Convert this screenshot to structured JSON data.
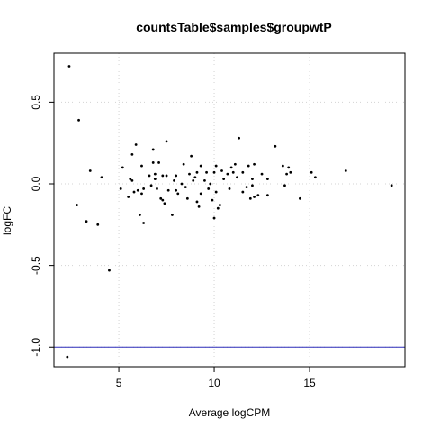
{
  "chart_data": {
    "type": "scatter",
    "title": "countsTable$samples$groupwtP",
    "xlabel": "Average logCPM",
    "ylabel": "logFC",
    "xlim": [
      1.6,
      20.0
    ],
    "ylim": [
      -1.12,
      0.8
    ],
    "grid": true,
    "x_ticks": [
      5,
      10,
      15
    ],
    "y_ticks": [
      -1.0,
      -0.5,
      0.0,
      0.5
    ],
    "x_tick_labels": [
      "5",
      "10",
      "15"
    ],
    "y_tick_labels": [
      "-1.0",
      "-0.5",
      "0.0",
      "0.5"
    ],
    "hline": {
      "y": -1.0,
      "color": "#2b2bb8"
    },
    "points": [
      {
        "x": 2.4,
        "y": 0.72
      },
      {
        "x": 2.9,
        "y": 0.39
      },
      {
        "x": 2.8,
        "y": -0.13
      },
      {
        "x": 2.3,
        "y": -1.06
      },
      {
        "x": 3.3,
        "y": -0.23
      },
      {
        "x": 3.5,
        "y": 0.08
      },
      {
        "x": 3.9,
        "y": -0.25
      },
      {
        "x": 4.1,
        "y": 0.04
      },
      {
        "x": 4.5,
        "y": -0.53
      },
      {
        "x": 5.1,
        "y": -0.03
      },
      {
        "x": 5.2,
        "y": 0.1
      },
      {
        "x": 5.5,
        "y": -0.08
      },
      {
        "x": 5.6,
        "y": 0.03
      },
      {
        "x": 5.7,
        "y": 0.02
      },
      {
        "x": 5.7,
        "y": 0.18
      },
      {
        "x": 5.8,
        "y": -0.05
      },
      {
        "x": 5.9,
        "y": 0.24
      },
      {
        "x": 6.0,
        "y": -0.04
      },
      {
        "x": 6.1,
        "y": -0.19
      },
      {
        "x": 6.2,
        "y": -0.06
      },
      {
        "x": 6.2,
        "y": 0.11
      },
      {
        "x": 6.3,
        "y": -0.03
      },
      {
        "x": 6.3,
        "y": -0.24
      },
      {
        "x": 6.6,
        "y": 0.05
      },
      {
        "x": 6.7,
        "y": -0.01
      },
      {
        "x": 6.8,
        "y": 0.21
      },
      {
        "x": 6.8,
        "y": 0.13
      },
      {
        "x": 6.9,
        "y": 0.06
      },
      {
        "x": 6.9,
        "y": 0.03
      },
      {
        "x": 7.0,
        "y": -0.03
      },
      {
        "x": 7.1,
        "y": 0.13
      },
      {
        "x": 7.2,
        "y": -0.09
      },
      {
        "x": 7.3,
        "y": 0.05
      },
      {
        "x": 7.3,
        "y": -0.1
      },
      {
        "x": 7.4,
        "y": -0.12
      },
      {
        "x": 7.5,
        "y": 0.26
      },
      {
        "x": 7.5,
        "y": 0.05
      },
      {
        "x": 7.6,
        "y": -0.04
      },
      {
        "x": 7.8,
        "y": -0.19
      },
      {
        "x": 7.9,
        "y": 0.02
      },
      {
        "x": 8.0,
        "y": 0.05
      },
      {
        "x": 8.0,
        "y": -0.04
      },
      {
        "x": 8.1,
        "y": -0.06
      },
      {
        "x": 8.3,
        "y": 0.0
      },
      {
        "x": 8.4,
        "y": 0.12
      },
      {
        "x": 8.5,
        "y": -0.02
      },
      {
        "x": 8.6,
        "y": -0.09
      },
      {
        "x": 8.7,
        "y": 0.06
      },
      {
        "x": 8.8,
        "y": 0.17
      },
      {
        "x": 8.9,
        "y": 0.02
      },
      {
        "x": 9.0,
        "y": 0.04
      },
      {
        "x": 9.1,
        "y": -0.11
      },
      {
        "x": 9.1,
        "y": 0.07
      },
      {
        "x": 9.2,
        "y": -0.14
      },
      {
        "x": 9.3,
        "y": 0.11
      },
      {
        "x": 9.3,
        "y": -0.06
      },
      {
        "x": 9.5,
        "y": 0.02
      },
      {
        "x": 9.6,
        "y": 0.07
      },
      {
        "x": 9.7,
        "y": -0.03
      },
      {
        "x": 9.8,
        "y": 0.0
      },
      {
        "x": 9.9,
        "y": -0.1
      },
      {
        "x": 10.0,
        "y": -0.21
      },
      {
        "x": 10.0,
        "y": 0.07
      },
      {
        "x": 10.1,
        "y": 0.11
      },
      {
        "x": 10.1,
        "y": -0.05
      },
      {
        "x": 10.2,
        "y": -0.15
      },
      {
        "x": 10.3,
        "y": -0.13
      },
      {
        "x": 10.4,
        "y": 0.08
      },
      {
        "x": 10.5,
        "y": 0.03
      },
      {
        "x": 10.7,
        "y": 0.06
      },
      {
        "x": 10.8,
        "y": -0.03
      },
      {
        "x": 10.9,
        "y": 0.1
      },
      {
        "x": 11.0,
        "y": 0.07
      },
      {
        "x": 11.1,
        "y": 0.12
      },
      {
        "x": 11.2,
        "y": 0.04
      },
      {
        "x": 11.3,
        "y": 0.28
      },
      {
        "x": 11.5,
        "y": 0.07
      },
      {
        "x": 11.5,
        "y": -0.05
      },
      {
        "x": 11.7,
        "y": -0.02
      },
      {
        "x": 11.8,
        "y": 0.11
      },
      {
        "x": 11.9,
        "y": -0.09
      },
      {
        "x": 12.0,
        "y": 0.03
      },
      {
        "x": 12.0,
        "y": -0.01
      },
      {
        "x": 12.1,
        "y": -0.08
      },
      {
        "x": 12.1,
        "y": 0.12
      },
      {
        "x": 12.3,
        "y": -0.07
      },
      {
        "x": 12.5,
        "y": 0.06
      },
      {
        "x": 12.8,
        "y": -0.07
      },
      {
        "x": 12.8,
        "y": 0.03
      },
      {
        "x": 13.2,
        "y": 0.23
      },
      {
        "x": 13.6,
        "y": 0.11
      },
      {
        "x": 13.7,
        "y": -0.01
      },
      {
        "x": 13.8,
        "y": 0.06
      },
      {
        "x": 13.9,
        "y": 0.1
      },
      {
        "x": 14.0,
        "y": 0.07
      },
      {
        "x": 14.5,
        "y": -0.09
      },
      {
        "x": 15.1,
        "y": 0.07
      },
      {
        "x": 15.3,
        "y": 0.04
      },
      {
        "x": 16.9,
        "y": 0.08
      },
      {
        "x": 19.3,
        "y": -0.01
      }
    ]
  }
}
